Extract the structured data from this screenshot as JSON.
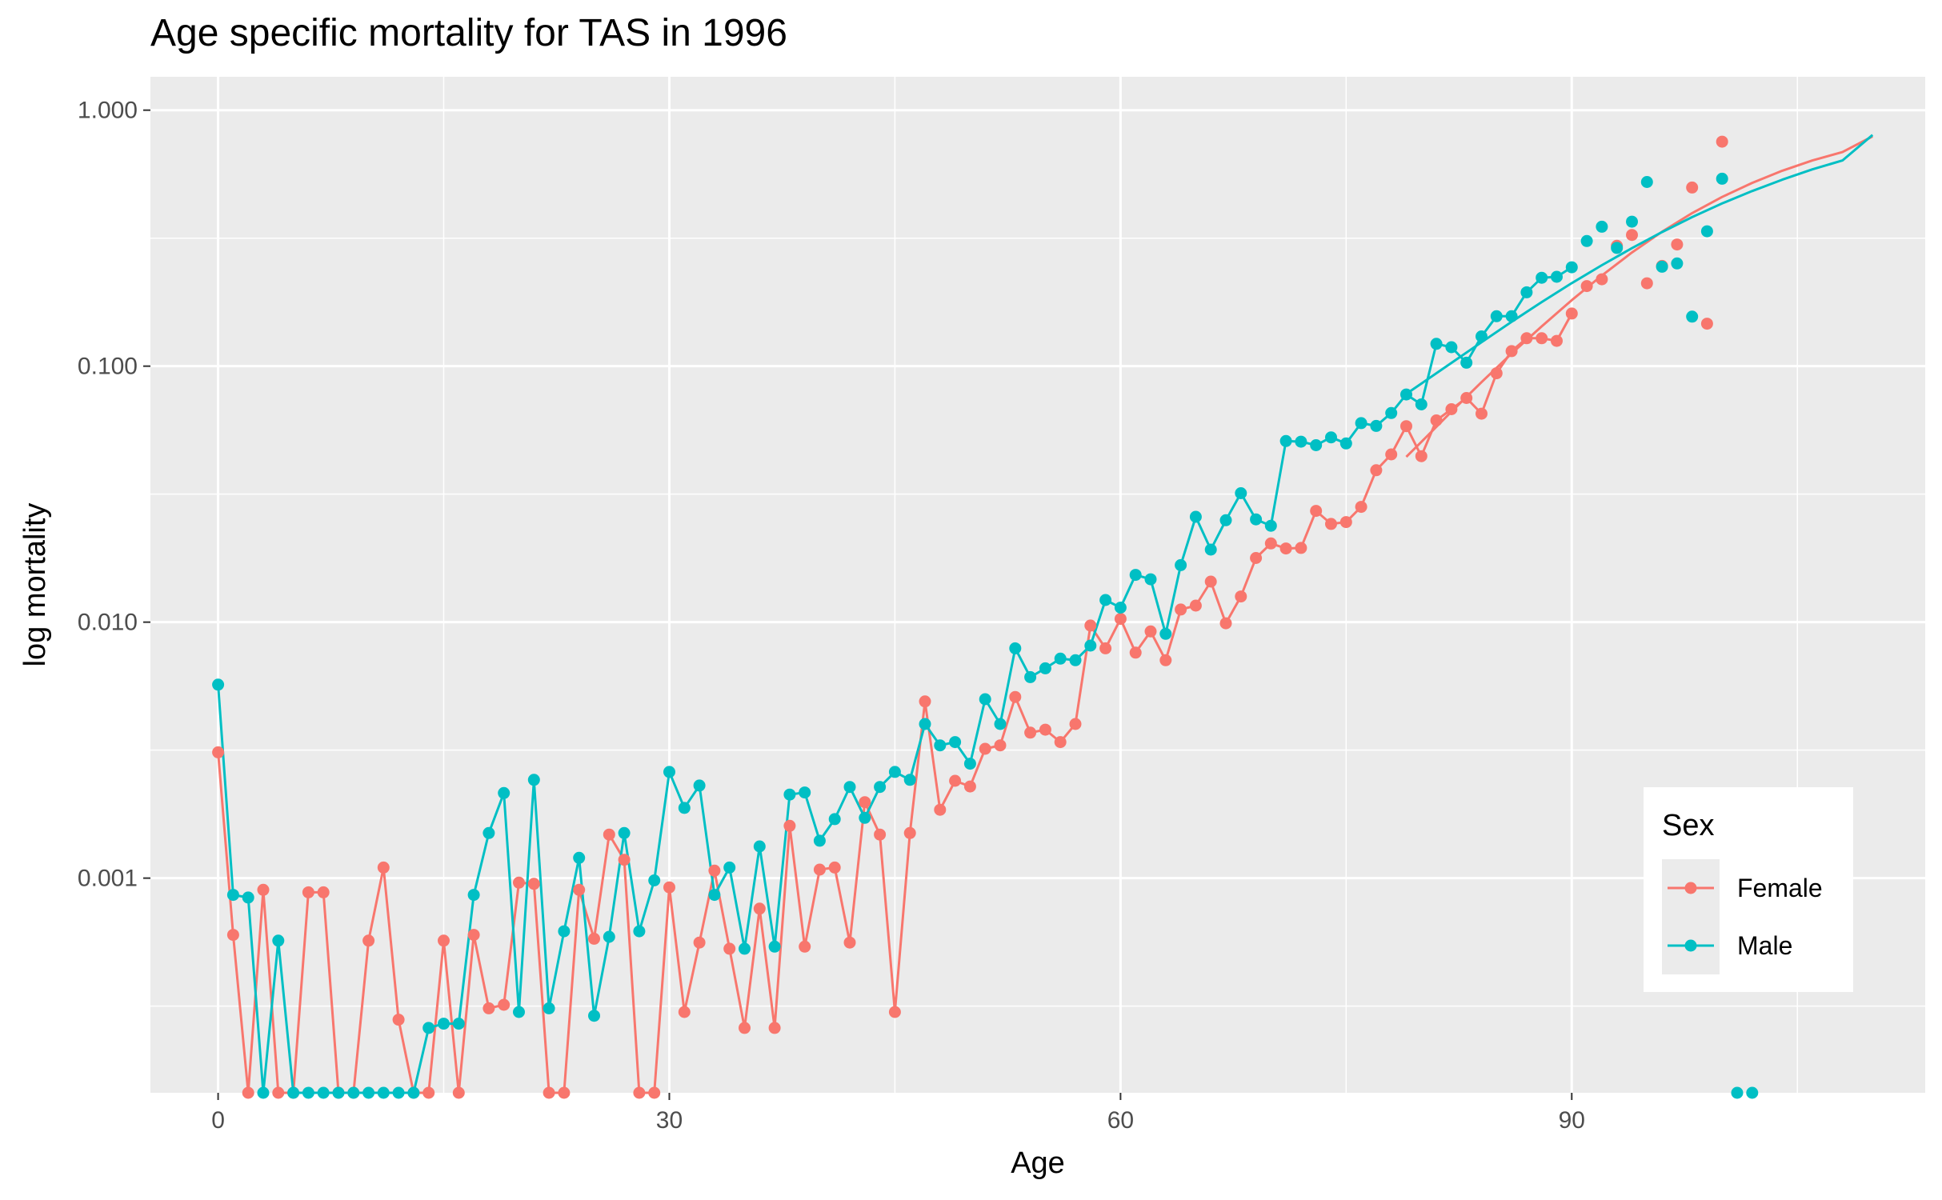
{
  "chart_data": {
    "type": "line",
    "title": "Age specific mortality for TAS in 1996",
    "xlabel": "Age",
    "ylabel": "log mortality",
    "y_scale": "log10",
    "xlim": [
      -4.5,
      113.5
    ],
    "ylim": [
      0.000145,
      1.35
    ],
    "x_ticks": [
      0,
      30,
      60,
      90
    ],
    "x_tick_labels": [
      "0",
      "30",
      "60",
      "90"
    ],
    "y_ticks": [
      0.001,
      0.01,
      0.1,
      1
    ],
    "y_tick_labels": [
      "0.001",
      "0.010",
      "0.100",
      "1.000"
    ],
    "grid": true,
    "background": "#ebebeb",
    "legend": {
      "title": "Sex",
      "position": "bottom-right",
      "entries": [
        "Female",
        "Male"
      ]
    },
    "series": [
      {
        "name": "Female",
        "color": "#F8766D",
        "ages": [
          0,
          1,
          2,
          3,
          4,
          5,
          6,
          7,
          8,
          9,
          10,
          11,
          12,
          13,
          14,
          15,
          16,
          17,
          18,
          19,
          20,
          21,
          22,
          23,
          24,
          25,
          26,
          27,
          28,
          29,
          30,
          31,
          32,
          33,
          34,
          35,
          36,
          37,
          38,
          39,
          40,
          41,
          42,
          43,
          44,
          45,
          46,
          47,
          48,
          49,
          50,
          51,
          52,
          53,
          54,
          55,
          56,
          57,
          58,
          59,
          60,
          61,
          62,
          63,
          64,
          65,
          66,
          67,
          68,
          69,
          70,
          71,
          72,
          73,
          74,
          75,
          76,
          77,
          78,
          79,
          80,
          81,
          82,
          83,
          84,
          85,
          86,
          87,
          88,
          89,
          90,
          91,
          92,
          93,
          94,
          95,
          96,
          97,
          98,
          99,
          100
        ],
        "observed": [
          0.0031,
          0.0006,
          0.000145,
          0.0009,
          0.000145,
          0.000145,
          0.00088,
          0.00088,
          0.000145,
          0.000145,
          0.00057,
          0.0011,
          0.00028,
          0.000145,
          0.000145,
          0.00057,
          0.000145,
          0.0006,
          0.00031,
          0.00032,
          0.00096,
          0.00095,
          0.000145,
          0.000145,
          0.0009,
          0.00058,
          0.00148,
          0.00118,
          0.000145,
          0.000145,
          0.00092,
          0.0003,
          0.00056,
          0.00107,
          0.00053,
          0.00026,
          0.00076,
          0.00026,
          0.0016,
          0.00054,
          0.00108,
          0.0011,
          0.00056,
          0.00198,
          0.00148,
          0.0003,
          0.0015,
          0.0049,
          0.00185,
          0.0024,
          0.00228,
          0.0032,
          0.0033,
          0.0051,
          0.0037,
          0.0038,
          0.0034,
          0.004,
          0.0097,
          0.0079,
          0.0103,
          0.0076,
          0.0092,
          0.0071,
          0.0112,
          0.0116,
          0.0144,
          0.0099,
          0.0126,
          0.0178,
          0.0203,
          0.0194,
          0.0195,
          0.0272,
          0.0242,
          0.0246,
          0.0282,
          0.0392,
          0.0452,
          0.0583,
          0.0445,
          0.0614,
          0.0679,
          0.0751,
          0.0652,
          0.0938,
          0.1145,
          0.1285,
          0.1285,
          0.1255,
          0.1605,
          0.2055,
          0.2185,
          0.2951,
          0.3254,
          0.2108,
          0.2463,
          0.2987,
          0.4985,
          0.1465,
          0.753
        ],
        "smooth_ages": [
          79,
          80,
          82,
          84,
          86,
          88,
          90,
          92,
          94,
          96,
          98,
          100,
          102,
          104,
          106,
          108,
          110
        ],
        "smooth": [
          0.0442,
          0.0506,
          0.0664,
          0.0866,
          0.112,
          0.143,
          0.181,
          0.226,
          0.278,
          0.335,
          0.396,
          0.458,
          0.52,
          0.58,
          0.636,
          0.686,
          0.79
        ]
      },
      {
        "name": "Male",
        "color": "#00BFC4",
        "ages": [
          0,
          1,
          2,
          3,
          4,
          5,
          6,
          7,
          8,
          9,
          10,
          11,
          12,
          13,
          14,
          15,
          16,
          17,
          18,
          19,
          20,
          21,
          22,
          23,
          24,
          25,
          26,
          27,
          28,
          29,
          30,
          31,
          32,
          33,
          34,
          35,
          36,
          37,
          38,
          39,
          40,
          41,
          42,
          43,
          44,
          45,
          46,
          47,
          48,
          49,
          50,
          51,
          52,
          53,
          54,
          55,
          56,
          57,
          58,
          59,
          60,
          61,
          62,
          63,
          64,
          65,
          66,
          67,
          68,
          69,
          70,
          71,
          72,
          73,
          74,
          75,
          76,
          77,
          78,
          79,
          80,
          81,
          82,
          83,
          84,
          85,
          86,
          87,
          88,
          89,
          90,
          91,
          92,
          93,
          94,
          95,
          96,
          97,
          98,
          99,
          100,
          101,
          102
        ],
        "observed": [
          0.0057,
          0.00086,
          0.00084,
          0.000145,
          0.00057,
          0.000145,
          0.000145,
          0.000145,
          0.000145,
          0.000145,
          0.000145,
          0.000145,
          0.000145,
          0.000145,
          0.00026,
          0.00027,
          0.00027,
          0.00086,
          0.0015,
          0.00215,
          0.0003,
          0.00242,
          0.00031,
          0.00062,
          0.0012,
          0.00029,
          0.00059,
          0.0015,
          0.00062,
          0.00098,
          0.0026,
          0.00188,
          0.0023,
          0.00086,
          0.0011,
          0.00053,
          0.00133,
          0.00054,
          0.00212,
          0.00216,
          0.0014,
          0.0017,
          0.00227,
          0.00172,
          0.00227,
          0.0026,
          0.00242,
          0.004,
          0.0033,
          0.0034,
          0.0028,
          0.005,
          0.004,
          0.0079,
          0.0061,
          0.0066,
          0.0072,
          0.0071,
          0.0081,
          0.0122,
          0.0114,
          0.0153,
          0.0147,
          0.009,
          0.0167,
          0.0258,
          0.0192,
          0.025,
          0.0319,
          0.0252,
          0.0238,
          0.051,
          0.0507,
          0.0491,
          0.0527,
          0.0499,
          0.0599,
          0.0584,
          0.0656,
          0.0775,
          0.0709,
          0.1222,
          0.1186,
          0.1031,
          0.1307,
          0.1567,
          0.1567,
          0.1943,
          0.2214,
          0.2233,
          0.2434,
          0.3081,
          0.3505,
          0.2897,
          0.3667,
          0.5239,
          0.2446,
          0.2519,
          0.1561,
          0.3363,
          0.5398,
          0.000145,
          0.000145
        ],
        "smooth_ages": [
          79,
          80,
          82,
          84,
          86,
          88,
          90,
          92,
          94,
          96,
          98,
          100,
          102,
          104,
          106,
          108,
          110
        ],
        "smooth": [
          0.0779,
          0.0855,
          0.103,
          0.124,
          0.149,
          0.178,
          0.211,
          0.248,
          0.289,
          0.334,
          0.382,
          0.432,
          0.483,
          0.535,
          0.587,
          0.636,
          0.8
        ]
      }
    ]
  }
}
